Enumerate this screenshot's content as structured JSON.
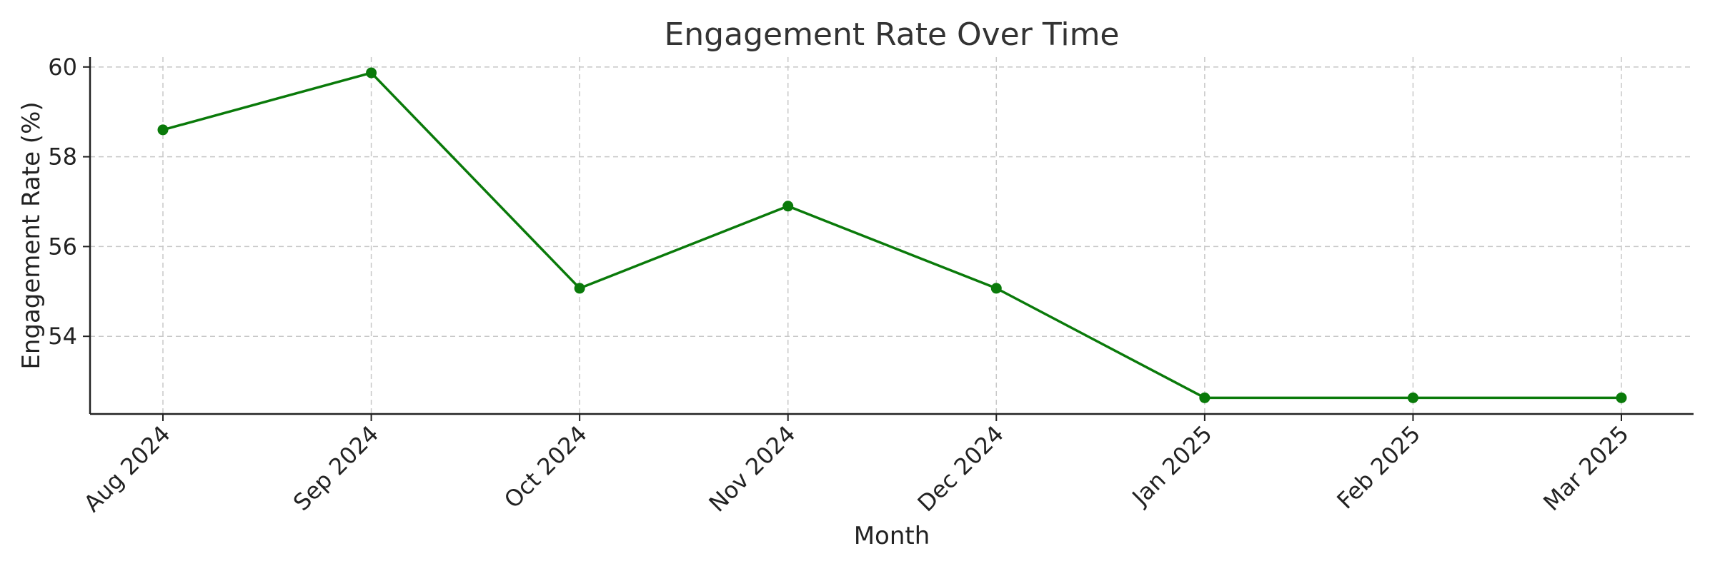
{
  "chart_data": {
    "type": "line",
    "title": "Engagement Rate Over Time",
    "xlabel": "Month",
    "ylabel": "Engagement Rate (%)",
    "categories": [
      "Aug 2024",
      "Sep 2024",
      "Oct 2024",
      "Nov 2024",
      "Dec 2024",
      "Jan 2025",
      "Feb 2025",
      "Mar 2025"
    ],
    "series": [
      {
        "values": [
          58.6,
          59.87,
          55.07,
          56.9,
          55.07,
          52.63,
          52.63,
          52.63
        ]
      }
    ],
    "yticks": [
      54,
      56,
      58,
      60
    ],
    "ylim": [
      52.27,
      60.22
    ],
    "grid": true,
    "legend": "none",
    "line_color": "#0a7a0a"
  }
}
